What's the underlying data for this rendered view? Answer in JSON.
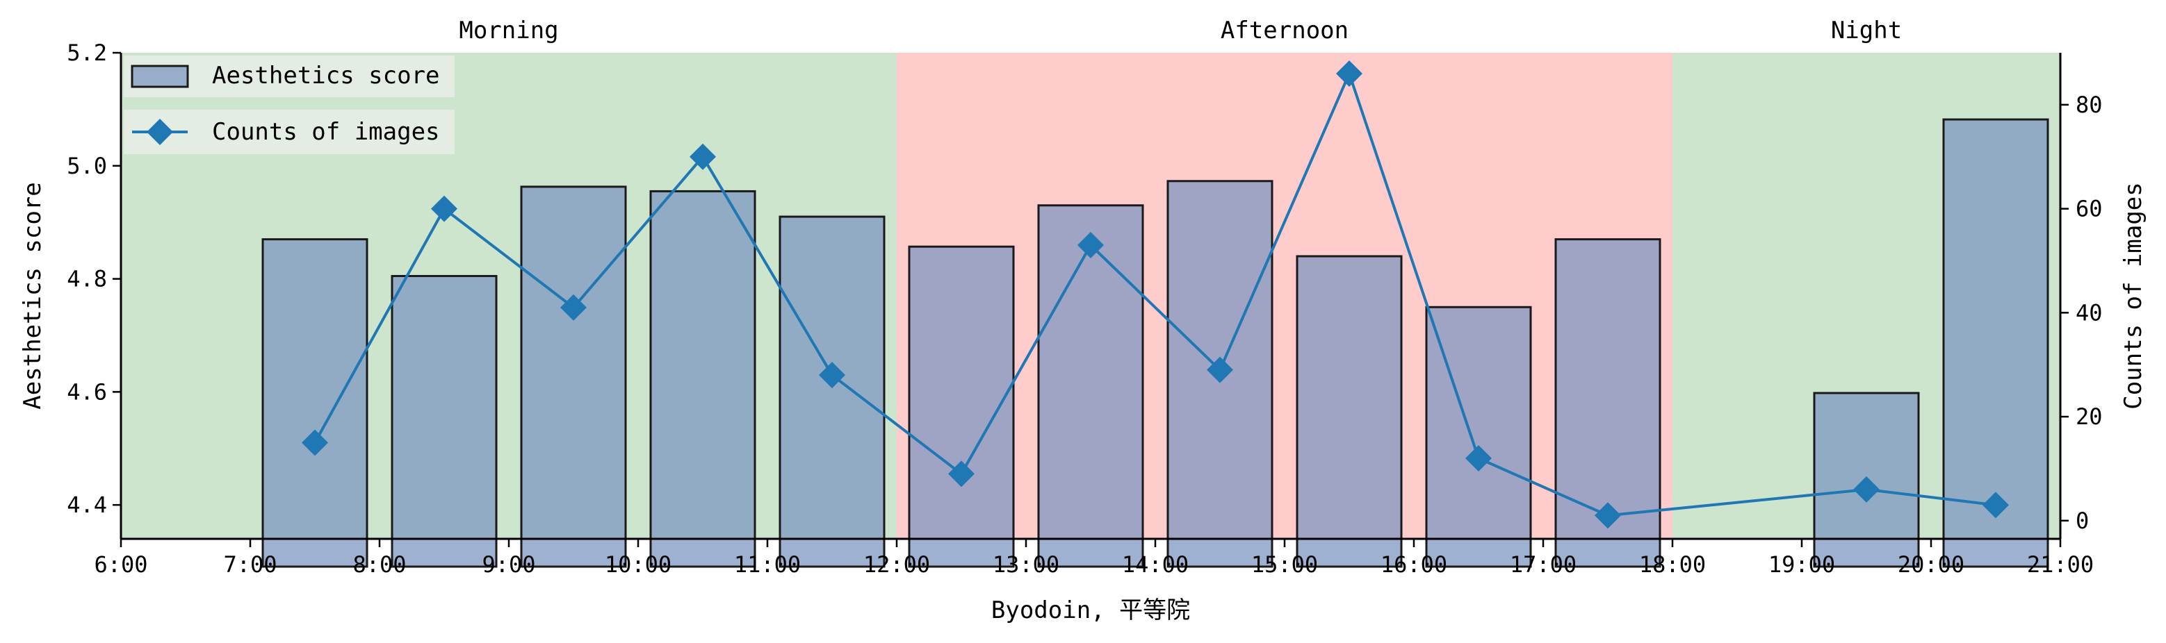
{
  "chart_data": {
    "type": "bar+line",
    "xlabel": "Byodoin, 平等院",
    "ylabel_left": "Aesthetics score",
    "ylabel_right": "Counts of images",
    "x_ticks": [
      "6:00",
      "7:00",
      "8:00",
      "9:00",
      "10:00",
      "11:00",
      "12:00",
      "13:00",
      "14:00",
      "15:00",
      "16:00",
      "17:00",
      "18:00",
      "19:00",
      "20:00",
      "21:00"
    ],
    "x_range": [
      6,
      21
    ],
    "ylim_left": [
      4.34,
      5.2
    ],
    "ylim_right": [
      -3.5,
      90
    ],
    "y_ticks_left": [
      4.4,
      4.6,
      4.8,
      5.0,
      5.2
    ],
    "y_ticks_left_labels": [
      "4.4",
      "4.6",
      "4.8",
      "5.0",
      "5.2"
    ],
    "y_ticks_right": [
      0,
      20,
      40,
      60,
      80
    ],
    "y_ticks_right_labels": [
      "0",
      "20",
      "40",
      "60",
      "80"
    ],
    "periods": [
      {
        "label": "Morning",
        "start": 6,
        "end": 12,
        "color": "#cce5cc"
      },
      {
        "label": "Afternoon",
        "start": 12,
        "end": 18,
        "color": "#ffcccc"
      },
      {
        "label": "Night",
        "start": 18,
        "end": 21,
        "color": "#cce5cc"
      }
    ],
    "series": [
      {
        "name": "Aesthetics score",
        "kind": "bar",
        "axis": "left",
        "color": "#7f97c1",
        "x": [
          7.5,
          8.5,
          9.5,
          10.5,
          11.5,
          12.5,
          13.5,
          14.5,
          15.5,
          16.5,
          17.5,
          19.5,
          20.5
        ],
        "values": [
          4.87,
          4.805,
          4.963,
          4.955,
          4.91,
          4.857,
          4.93,
          4.973,
          4.84,
          4.75,
          4.87,
          4.598,
          5.082
        ]
      },
      {
        "name": "Counts of images",
        "kind": "line",
        "axis": "right",
        "color": "#1f77b4",
        "marker": "diamond",
        "x": [
          7.5,
          8.5,
          9.5,
          10.5,
          11.5,
          12.5,
          13.5,
          14.5,
          15.5,
          16.5,
          17.5,
          19.5,
          20.5
        ],
        "values": [
          15,
          60,
          41,
          70,
          28,
          9,
          53,
          29,
          86,
          12,
          1,
          6,
          3
        ]
      }
    ],
    "legend_position": "top-left",
    "grid": false
  }
}
